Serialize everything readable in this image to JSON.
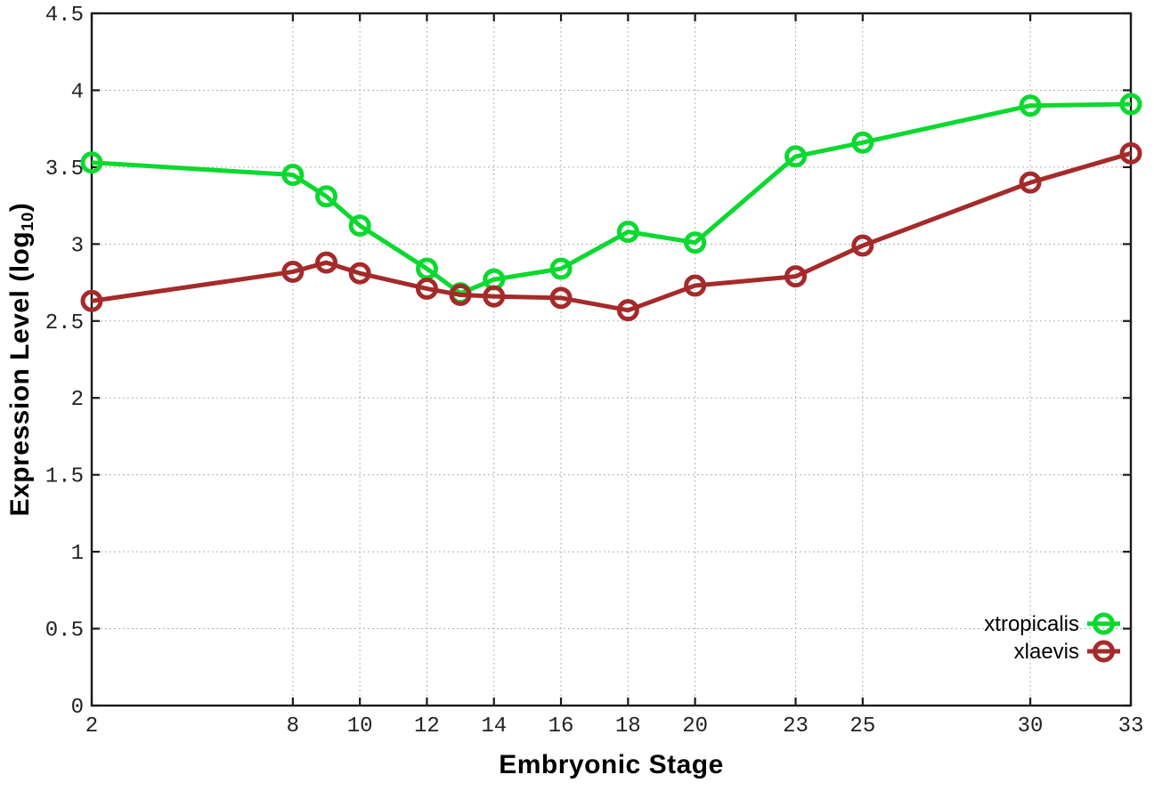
{
  "page": {
    "background": "#ffffff"
  },
  "chart_data": {
    "type": "line",
    "title": "",
    "xlabel": "Embryonic Stage",
    "ylabel": "Expression Level (log10)",
    "ylabel_rich": {
      "prefix": "Expression Level (log",
      "subscript": "10",
      "suffix": ")"
    },
    "xlim": [
      2,
      33
    ],
    "ylim": [
      0,
      4.5
    ],
    "xticks": [
      2,
      8,
      10,
      12,
      14,
      16,
      18,
      20,
      23,
      25,
      30,
      33
    ],
    "yticks": [
      0,
      0.5,
      1,
      1.5,
      2,
      2.5,
      3,
      3.5,
      4,
      4.5
    ],
    "grid": true,
    "legend_position": "bottom-right",
    "marker": "open-circle",
    "x": [
      2,
      8,
      9,
      10,
      12,
      13,
      14,
      16,
      18,
      20,
      23,
      25,
      30,
      33
    ],
    "series": [
      {
        "name": "xtropicalis",
        "color": "#0bd92f",
        "values": [
          3.53,
          3.45,
          3.31,
          3.12,
          2.84,
          2.68,
          2.77,
          2.84,
          3.08,
          3.01,
          3.57,
          3.66,
          3.9,
          3.91
        ]
      },
      {
        "name": "xlaevis",
        "color": "#a52a2a",
        "values": [
          2.63,
          2.82,
          2.88,
          2.81,
          2.71,
          2.67,
          2.66,
          2.65,
          2.57,
          2.73,
          2.79,
          2.99,
          3.4,
          3.59
        ]
      }
    ]
  }
}
